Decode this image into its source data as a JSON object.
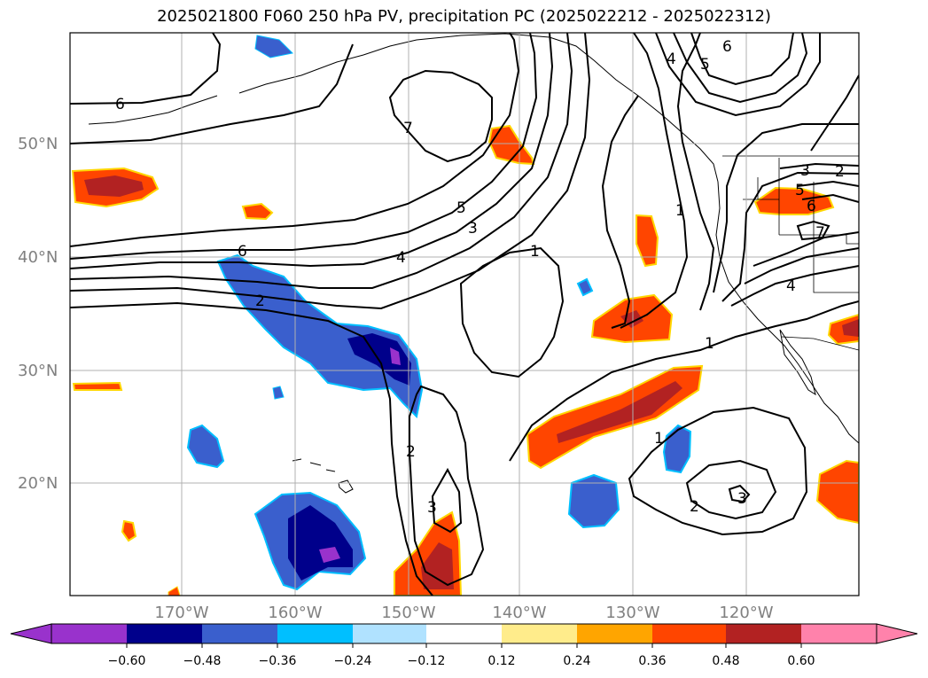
{
  "title": "2025021800 F060 250 hPa PV, precipitation PC (2025022212 - 2025022312)",
  "lat_labels": [
    "50°N",
    "40°N",
    "30°N",
    "20°N"
  ],
  "lon_labels": [
    "170°W",
    "160°W",
    "150°W",
    "140°W",
    "130°W",
    "120°W"
  ],
  "colorbar": {
    "tick_labels": [
      "−0.60",
      "−0.48",
      "−0.36",
      "−0.24",
      "−0.12",
      "0.12",
      "0.24",
      "0.36",
      "0.48",
      "0.60"
    ],
    "colors": [
      "#9932cc",
      "#00008b",
      "#3a5fcd",
      "#00bfff",
      "#b0e2ff",
      "#ffffff",
      "#ffec8b",
      "#ffa500",
      "#ff4500",
      "#b22222",
      "#ff82ab"
    ]
  },
  "contour_labels": [
    "6",
    "6",
    "4",
    "5",
    "7",
    "1",
    "3",
    "5",
    "3",
    "2",
    "6",
    "7",
    "4",
    "6",
    "2",
    "4",
    "1",
    "3",
    "5",
    "1",
    "1",
    "2",
    "3",
    "2"
  ],
  "colors": {
    "neg_purple": "#9932cc",
    "neg_navy": "#00008b",
    "neg_blue": "#3a5fcd",
    "neg_cyan": "#00bfff",
    "pos_orange": "#ff4500",
    "pos_red": "#b22222",
    "pos_yellow": "#ffd700",
    "pos_pink": "#ff82ab"
  }
}
